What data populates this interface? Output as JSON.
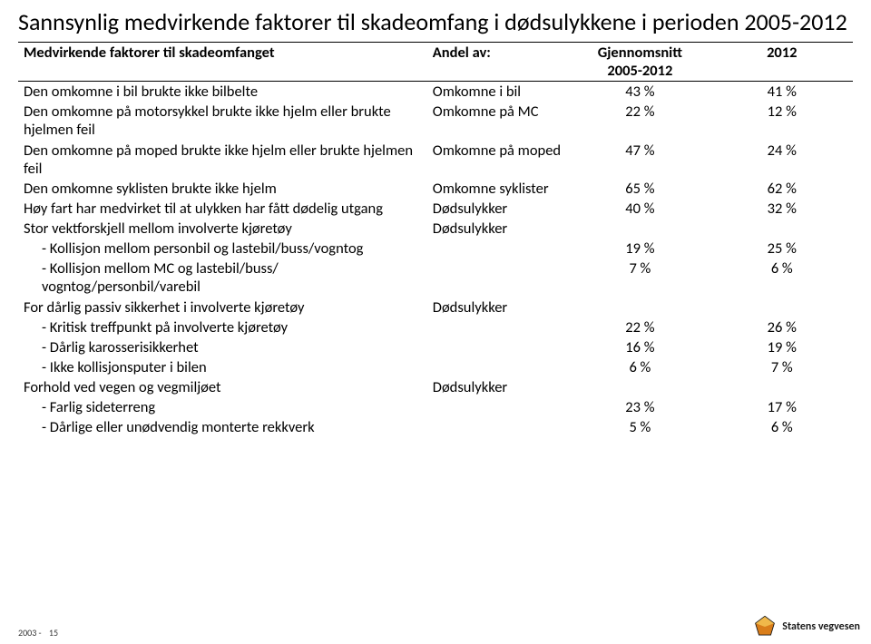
{
  "title": "Sannsynlig medvirkende faktorer til skadeomfang i dødsulykkene i perioden 2005-2012",
  "header": {
    "factor": "Medvirkende faktorer til skadeomfanget",
    "andel": "Andel av:",
    "gjen_line1": "Gjennomsnitt",
    "gjen_line2": "2005-2012",
    "y2012": "2012"
  },
  "rows": [
    {
      "factor": "Den omkomne i bil brukte ikke bilbelte",
      "andel": "Omkomne i bil",
      "g": "43 %",
      "y": "41 %"
    },
    {
      "factor": "Den omkomne på motorsykkel brukte ikke hjelm eller brukte hjelmen feil",
      "andel": "Omkomne på MC",
      "g": "22 %",
      "y": "12 %"
    },
    {
      "factor": "Den omkomne på moped brukte ikke hjelm eller brukte hjelmen feil",
      "andel": "Omkomne på moped",
      "g": "47 %",
      "y": "24 %"
    },
    {
      "factor": "Den omkomne syklisten brukte ikke hjelm",
      "andel": "Omkomne syklister",
      "g": "65 %",
      "y": "62 %"
    },
    {
      "factor": "Høy fart har medvirket til at ulykken har fått dødelig utgang",
      "andel": "Dødsulykker",
      "g": "40 %",
      "y": "32 %"
    },
    {
      "factor": "Stor vektforskjell mellom involverte kjøretøy",
      "andel": "Dødsulykker",
      "g": "",
      "y": ""
    },
    {
      "factor": "Kollisjon mellom personbil og lastebil/buss/vogntog",
      "andel": "",
      "g": "19 %",
      "y": "25 %",
      "sub": true
    },
    {
      "factor": "Kollisjon mellom MC og lastebil/buss/ vogntog/personbil/varebil",
      "andel": "",
      "g": "7 %",
      "y": "6 %",
      "sub": true
    },
    {
      "factor": "For dårlig passiv sikkerhet i involverte kjøretøy",
      "andel": "Dødsulykker",
      "g": "",
      "y": ""
    },
    {
      "factor": "Kritisk treffpunkt på involverte kjøretøy",
      "andel": "",
      "g": "22 %",
      "y": "26 %",
      "sub": true
    },
    {
      "factor": "Dårlig karosserisikkerhet",
      "andel": "",
      "g": "16 %",
      "y": "19 %",
      "sub": true
    },
    {
      "factor": "Ikke kollisjonsputer i bilen",
      "andel": "",
      "g": "6 %",
      "y": "7 %",
      "sub": true
    },
    {
      "factor": "Forhold ved vegen og vegmiljøet",
      "andel": "Dødsulykker",
      "g": "",
      "y": ""
    },
    {
      "factor": "Farlig sideterreng",
      "andel": "",
      "g": "23 %",
      "y": "17 %",
      "sub": true
    },
    {
      "factor": "Dårlige eller unødvendig monterte rekkverk",
      "andel": "",
      "g": "5 %",
      "y": "6 %",
      "sub": true
    }
  ],
  "footer": {
    "left_prefix": "2003 -",
    "left_page": "15",
    "right": "Statens vegvesen"
  },
  "style": {
    "title_fontsize": 26,
    "table_fontsize": 16.5,
    "border_color": "#000000",
    "background": "#ffffff",
    "logo_colors": {
      "top": "#d97d1a",
      "bottom": "#f0b84a",
      "outline": "#1a1a1a"
    }
  }
}
